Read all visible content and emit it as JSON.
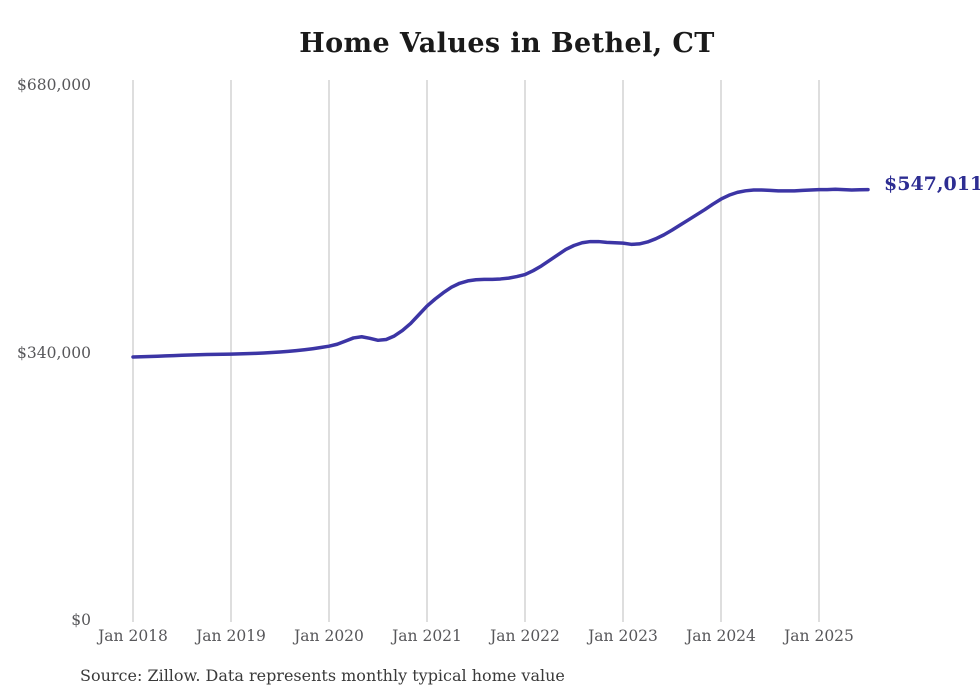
{
  "title": "Home Values in Bethel, CT",
  "end_label": "$547,011",
  "source_note": "Source: Zillow. Data represents monthly typical home value",
  "colors": {
    "background": "#ffffff",
    "line": "#3c35a5",
    "grid": "#bdbdbd",
    "axis_text": "#57575a",
    "title_text": "#1a1a1a",
    "end_label_text": "#2d2d92",
    "source_text": "#3a3a3a"
  },
  "chart_data": {
    "type": "line",
    "title": "Home Values in Bethel, CT",
    "xlabel": "",
    "ylabel": "",
    "ylim": [
      0,
      680000
    ],
    "y_ticks": [
      0,
      340000,
      680000
    ],
    "y_tick_labels": [
      "$0",
      "$340,000",
      "$680,000"
    ],
    "x_tick_labels": [
      "Jan 2018",
      "Jan 2019",
      "Jan 2020",
      "Jan 2021",
      "Jan 2022",
      "Jan 2023",
      "Jan 2024",
      "Jan 2025"
    ],
    "grid": "vertical-only",
    "legend": "none",
    "annotation": {
      "text": "$547,011",
      "attached_to": "last-point"
    },
    "series": [
      {
        "name": "Monthly typical home value",
        "color": "#3c35a5",
        "x_start": "2018-01",
        "x_interval": "month",
        "x_end": "2025-07",
        "values": [
          334300,
          334600,
          334900,
          335300,
          335700,
          336100,
          336500,
          336900,
          337200,
          337400,
          337600,
          337800,
          338000,
          338200,
          338500,
          338900,
          339400,
          340000,
          340700,
          341500,
          342400,
          343500,
          344800,
          346300,
          348000,
          350500,
          354500,
          358500,
          360000,
          358000,
          355500,
          356500,
          361000,
          368000,
          377000,
          388000,
          399000,
          408000,
          416000,
          423000,
          428000,
          431000,
          432500,
          433000,
          433000,
          433500,
          434500,
          436500,
          439000,
          444000,
          450000,
          457000,
          464000,
          471000,
          476000,
          479500,
          481000,
          481000,
          480000,
          479500,
          479000,
          477500,
          478000,
          480500,
          484500,
          489500,
          495500,
          502000,
          508500,
          515000,
          521500,
          528500,
          535000,
          540000,
          543500,
          545500,
          546500,
          546500,
          546000,
          545500,
          545500,
          545500,
          546000,
          546500,
          547000,
          547000,
          547500,
          547000,
          546500,
          546800,
          547011
        ]
      }
    ]
  }
}
